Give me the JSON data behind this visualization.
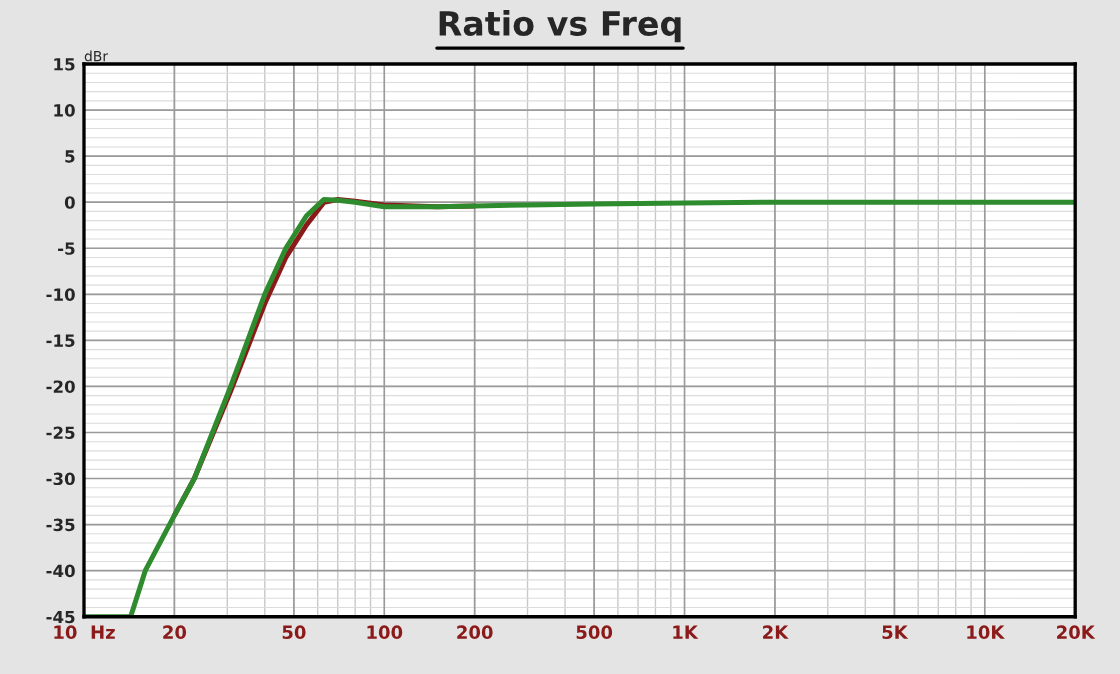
{
  "chart_data": {
    "type": "line",
    "title": "Ratio vs Freq",
    "ylabel": "dBr",
    "log": "x",
    "xlim": [
      10,
      20000
    ],
    "ylim": [
      -45,
      15
    ],
    "xticks": [
      {
        "value": 10,
        "label": "10  Hz"
      },
      20,
      50,
      100,
      200,
      500,
      {
        "value": 1000,
        "label": "1K"
      },
      {
        "value": 2000,
        "label": "2K"
      },
      {
        "value": 5000,
        "label": "5K"
      },
      {
        "value": 10000,
        "label": "10K"
      },
      {
        "value": 20000,
        "label": "20K"
      }
    ],
    "yticks": [
      -45,
      -40,
      -35,
      -30,
      -25,
      -20,
      -15,
      -10,
      -5,
      0,
      5,
      10,
      15
    ],
    "grid": true,
    "line_style": "solid",
    "marker": "none",
    "series": [
      {
        "color": "#8b1a1a",
        "x": [
          20,
          23.3,
          30.8,
          40,
          47,
          55,
          63,
          70,
          80,
          100,
          150,
          200
        ],
        "values": [
          -34,
          -30,
          -20.5,
          -11,
          -6,
          -2.5,
          0,
          0.3,
          0.1,
          -0.3,
          -0.5,
          -0.4
        ]
      },
      {
        "color": "#2e8b2e",
        "x": [
          10,
          14.3,
          16,
          20,
          23.3,
          30.8,
          40,
          47,
          55,
          63,
          70,
          80,
          100,
          150,
          200,
          300,
          500,
          1000,
          2000,
          20000
        ],
        "values": [
          -45,
          -45,
          -40,
          -34,
          -30,
          -20,
          -10,
          -5,
          -1.5,
          0.3,
          0.2,
          0,
          -0.5,
          -0.5,
          -0.4,
          -0.3,
          -0.2,
          -0.1,
          0,
          0
        ]
      }
    ]
  }
}
